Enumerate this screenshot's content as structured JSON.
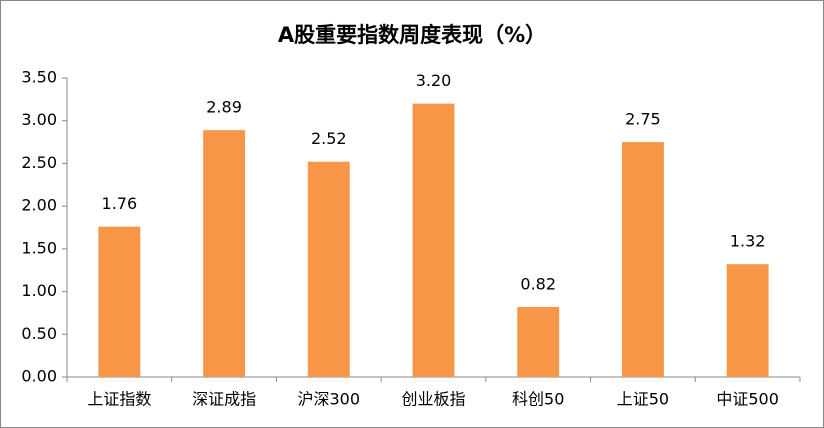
{
  "chart_data": {
    "type": "bar",
    "title": "A股重要指数周度表现（%）",
    "categories": [
      "上证指数",
      "深证成指",
      "沪深300",
      "创业板指",
      "科创50",
      "上证50",
      "中证500"
    ],
    "values": [
      1.76,
      2.89,
      2.52,
      3.2,
      0.82,
      2.75,
      1.32
    ],
    "value_labels": [
      "1.76",
      "2.89",
      "2.52",
      "3.20",
      "0.82",
      "2.75",
      "1.32"
    ],
    "color": "#f79646",
    "ylim": [
      0,
      3.5
    ],
    "yticks": [
      {
        "value": 0,
        "label": "0.00"
      },
      {
        "value": 0.5,
        "label": "0.50"
      },
      {
        "value": 1,
        "label": "1.00"
      },
      {
        "value": 1.5,
        "label": "1.50"
      },
      {
        "value": 2,
        "label": "2.00"
      },
      {
        "value": 2.5,
        "label": "2.50"
      },
      {
        "value": 3,
        "label": "3.00"
      },
      {
        "value": 3.5,
        "label": "3.50"
      }
    ],
    "grid": false
  }
}
